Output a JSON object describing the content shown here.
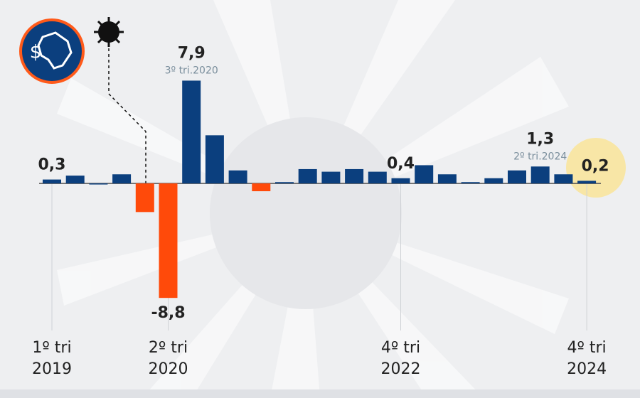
{
  "chart_data": {
    "type": "bar",
    "categories": [
      [
        "1º tri",
        "2019"
      ],
      null,
      null,
      null,
      null,
      [
        "2º tri",
        "2020"
      ],
      null,
      null,
      null,
      null,
      null,
      null,
      null,
      null,
      null,
      [
        "4º tri",
        "2022"
      ],
      null,
      null,
      null,
      null,
      null,
      null,
      null,
      [
        "4º tri",
        "2024"
      ]
    ],
    "values": [
      0.3,
      0.6,
      0,
      0.7,
      -2.2,
      -8.8,
      7.9,
      3.7,
      1.0,
      -0.6,
      0.1,
      1.1,
      0.9,
      1.1,
      0.9,
      0.4,
      1.4,
      0.7,
      0.1,
      0.4,
      1.0,
      1.3,
      0.7,
      0.2
    ],
    "value_labels": [
      "0,3",
      null,
      null,
      null,
      null,
      "-8,8",
      "7,9",
      null,
      null,
      null,
      null,
      null,
      null,
      null,
      null,
      "0,4",
      null,
      null,
      null,
      null,
      null,
      "1,3",
      null,
      "0,2"
    ],
    "sublabels": [
      null,
      null,
      null,
      null,
      null,
      null,
      "3º tri.2020",
      null,
      null,
      null,
      null,
      null,
      null,
      null,
      null,
      null,
      null,
      null,
      null,
      null,
      null,
      "2º tri.2024",
      null,
      null
    ],
    "color": "#0b3f7e",
    "negative_color": "#ff4a0a",
    "ylim": [
      -9.5,
      10
    ]
  }
}
